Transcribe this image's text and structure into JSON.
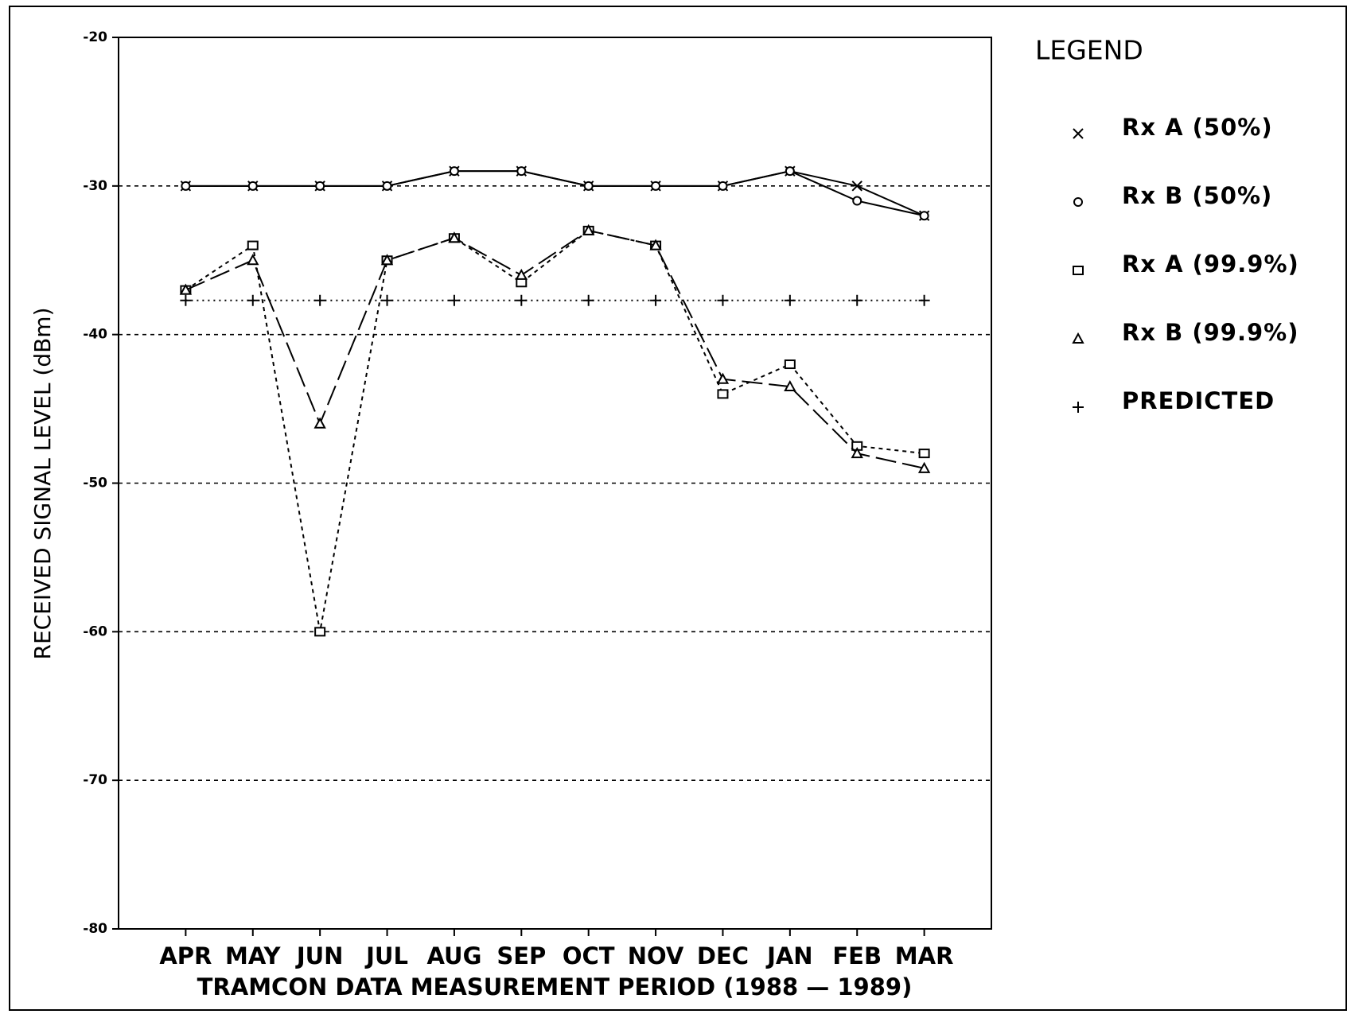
{
  "chart_data": {
    "type": "line",
    "y_label": "RECEIVED SIGNAL LEVEL (dBm)",
    "x_label": "TRAMCON DATA MEASUREMENT PERIOD (1988 — 1989)",
    "legend_title": "LEGEND",
    "categories": [
      "APR",
      "MAY",
      "JUN",
      "JUL",
      "AUG",
      "SEP",
      "OCT",
      "NOV",
      "DEC",
      "JAN",
      "FEB",
      "MAR"
    ],
    "series": [
      {
        "name": "Rx A (50%)",
        "color": "#000000",
        "marker": "x",
        "dash": "none",
        "values": [
          -30,
          -30,
          -30,
          -30,
          -29,
          -29,
          -30,
          -30,
          -30,
          -29,
          -30,
          -32
        ]
      },
      {
        "name": "Rx B (50%)",
        "color": "#000000",
        "marker": "circle",
        "dash": "none",
        "values": [
          -30,
          -30,
          -30,
          -30,
          -29,
          -29,
          -30,
          -30,
          -30,
          -29,
          -31,
          -32
        ]
      },
      {
        "name": "Rx A (99.9%)",
        "color": "#000000",
        "marker": "square",
        "dash": "5 5",
        "values": [
          -37,
          -34,
          -60,
          -35,
          -33.5,
          -36.5,
          -33,
          -34,
          -44,
          -42,
          -47.5,
          -48
        ]
      },
      {
        "name": "Rx B (99.9%)",
        "color": "#000000",
        "marker": "triangle",
        "dash": "26 8",
        "values": [
          -37,
          -35,
          -46,
          -35,
          -33.5,
          -36,
          -33,
          -34,
          -43,
          -43.5,
          -48,
          -49
        ]
      },
      {
        "name": "PREDICTED",
        "color": "#000000",
        "marker": "plus",
        "dash": "2 5",
        "values": [
          -37.7,
          -37.7,
          -37.7,
          -37.7,
          -37.7,
          -37.7,
          -37.7,
          -37.7,
          -37.7,
          -37.7,
          -37.7,
          -37.7
        ]
      }
    ],
    "ylim": [
      -80,
      -20
    ],
    "yticks": [
      -20,
      -30,
      -40,
      -50,
      -60,
      -70,
      -80
    ],
    "grid": true
  }
}
